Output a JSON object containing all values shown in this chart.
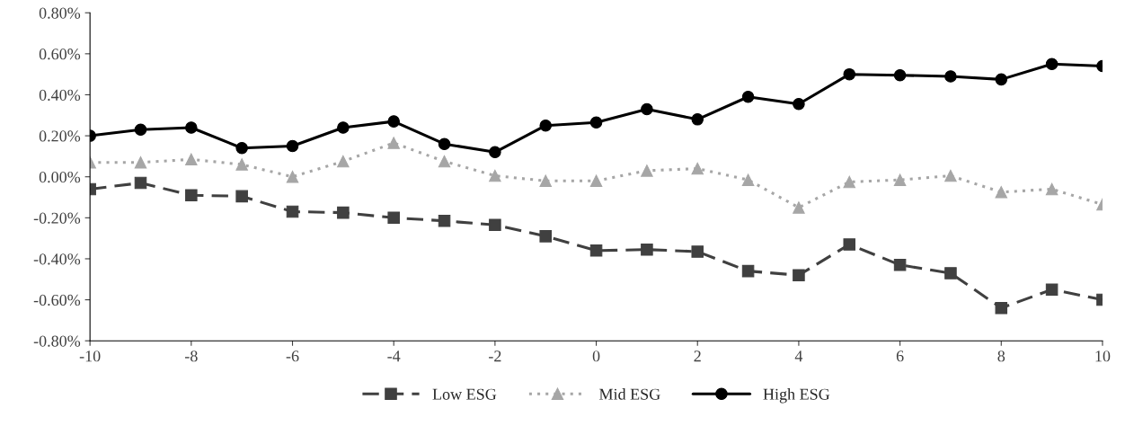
{
  "chart_data": {
    "type": "line",
    "x": [
      -10,
      -9,
      -8,
      -7,
      -6,
      -5,
      -4,
      -3,
      -2,
      -1,
      0,
      1,
      2,
      3,
      4,
      5,
      6,
      7,
      8,
      9,
      10
    ],
    "series": [
      {
        "name": "Low ESG",
        "color": "#404040",
        "marker": "square",
        "line_style": "dashed",
        "values": [
          -0.06,
          -0.03,
          -0.09,
          -0.095,
          -0.17,
          -0.175,
          -0.2,
          -0.215,
          -0.235,
          -0.29,
          -0.36,
          -0.355,
          -0.365,
          -0.46,
          -0.48,
          -0.33,
          -0.43,
          -0.47,
          -0.64,
          -0.55,
          -0.6
        ]
      },
      {
        "name": "Mid ESG",
        "color": "#a6a6a6",
        "marker": "triangle",
        "line_style": "dotted",
        "values": [
          0.07,
          0.07,
          0.085,
          0.06,
          0.0,
          0.075,
          0.165,
          0.075,
          0.005,
          -0.02,
          -0.02,
          0.03,
          0.04,
          -0.015,
          -0.15,
          -0.025,
          -0.015,
          0.005,
          -0.075,
          -0.06,
          -0.135
        ]
      },
      {
        "name": "High ESG",
        "color": "#000000",
        "marker": "circle",
        "line_style": "solid",
        "values": [
          0.2,
          0.23,
          0.24,
          0.14,
          0.15,
          0.24,
          0.27,
          0.16,
          0.12,
          0.25,
          0.265,
          0.33,
          0.28,
          0.39,
          0.355,
          0.5,
          0.495,
          0.49,
          0.475,
          0.55,
          0.54
        ]
      }
    ],
    "xlim": [
      -10,
      10
    ],
    "xticks": [
      -10,
      -8,
      -6,
      -4,
      -2,
      0,
      2,
      4,
      6,
      8,
      10
    ],
    "ylim": [
      -0.8,
      0.8
    ],
    "yticks": [
      {
        "value": -0.8,
        "label": "-0.80%"
      },
      {
        "value": -0.6,
        "label": "-0.60%"
      },
      {
        "value": -0.4,
        "label": "-0.40%"
      },
      {
        "value": -0.2,
        "label": "-0.20%"
      },
      {
        "value": 0,
        "label": "0.00%"
      },
      {
        "value": 0.2,
        "label": "0.20%"
      },
      {
        "value": 0.4,
        "label": "0.40%"
      },
      {
        "value": 0.6,
        "label": "0.60%"
      },
      {
        "value": 0.8,
        "label": "0.80%"
      }
    ],
    "grid": false,
    "legend": "bottom"
  }
}
